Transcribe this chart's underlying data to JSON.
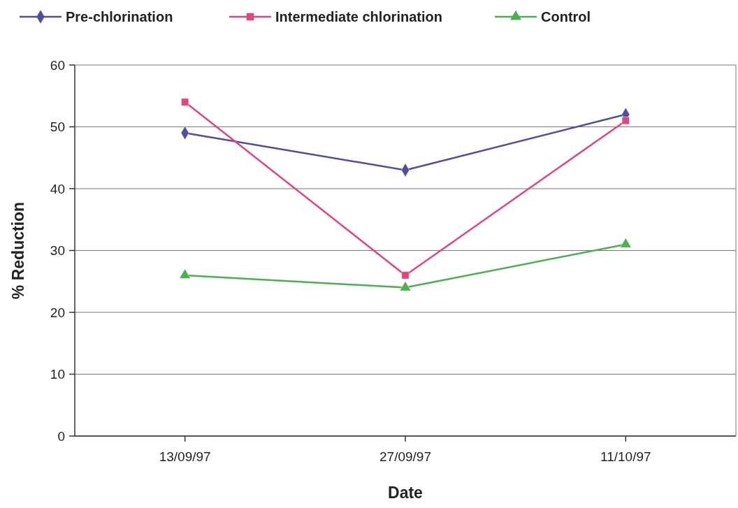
{
  "chart_data": {
    "type": "line",
    "xlabel": "Date",
    "ylabel": "% Reduction",
    "categories": [
      "13/09/97",
      "27/09/97",
      "11/10/97"
    ],
    "series": [
      {
        "name": "Pre-chlorination",
        "color": "#4f4f9f",
        "marker": "diamond",
        "values": [
          49,
          43,
          52
        ]
      },
      {
        "name": "Intermediate chlorination",
        "color": "#e0457b",
        "marker": "square",
        "values": [
          54,
          26,
          51
        ]
      },
      {
        "name": "Control",
        "color": "#4caf50",
        "marker": "triangle",
        "values": [
          26,
          24,
          31
        ]
      }
    ],
    "ylim": [
      0,
      60
    ],
    "yticks": [
      0,
      10,
      20,
      30,
      40,
      50,
      60
    ],
    "grid": "y",
    "legend": "top"
  }
}
